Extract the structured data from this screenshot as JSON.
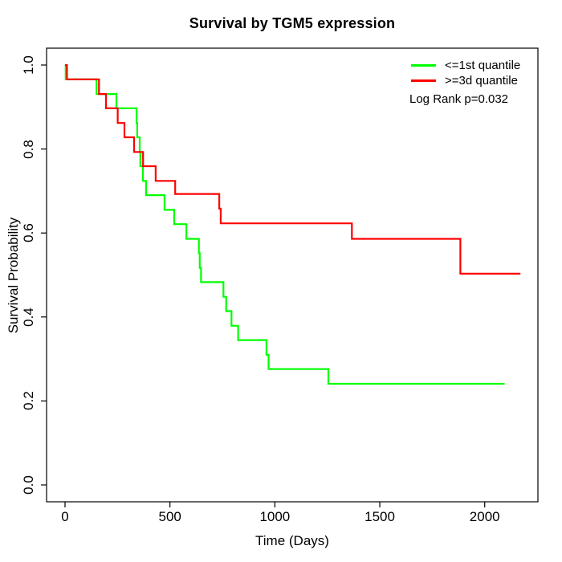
{
  "chart_data": {
    "type": "line",
    "subtype": "kaplan-meier-step-curves",
    "title": "Survival by TGM5 expression",
    "xlabel": "Time (Days)",
    "ylabel": "Survival Probability",
    "xlim": [
      0,
      2260
    ],
    "ylim": [
      0.0,
      1.0
    ],
    "grid": false,
    "frame": "full-box",
    "x_ticks": [
      {
        "value": 0,
        "label": "0"
      },
      {
        "value": 500,
        "label": "500"
      },
      {
        "value": 1000,
        "label": "1000"
      },
      {
        "value": 1500,
        "label": "1500"
      },
      {
        "value": 2000,
        "label": "2000"
      }
    ],
    "y_ticks": [
      {
        "value": 0.0,
        "label": "0.0"
      },
      {
        "value": 0.2,
        "label": "0.2"
      },
      {
        "value": 0.4,
        "label": "0.4"
      },
      {
        "value": 0.6,
        "label": "0.6"
      },
      {
        "value": 0.8,
        "label": "0.8"
      },
      {
        "value": 1.0,
        "label": "1.0"
      }
    ],
    "legend_position": "top-right-inside",
    "annotation": "Log Rank p=0.032",
    "series": [
      {
        "name": "<=1st quantile",
        "color": "#00ff00",
        "end_time": 2095,
        "points": [
          [
            0,
            1.0
          ],
          [
            3,
            0.966
          ],
          [
            150,
            0.931
          ],
          [
            245,
            0.897
          ],
          [
            341,
            0.862
          ],
          [
            344,
            0.828
          ],
          [
            356,
            0.793
          ],
          [
            359,
            0.759
          ],
          [
            371,
            0.724
          ],
          [
            386,
            0.69
          ],
          [
            474,
            0.655
          ],
          [
            520,
            0.621
          ],
          [
            578,
            0.586
          ],
          [
            638,
            0.552
          ],
          [
            642,
            0.517
          ],
          [
            648,
            0.483
          ],
          [
            755,
            0.448
          ],
          [
            768,
            0.414
          ],
          [
            793,
            0.379
          ],
          [
            825,
            0.345
          ],
          [
            960,
            0.31
          ],
          [
            970,
            0.276
          ],
          [
            1255,
            0.241
          ]
        ]
      },
      {
        "name": ">=3d quantile",
        "color": "#ff0000",
        "end_time": 2170,
        "points": [
          [
            0,
            1.0
          ],
          [
            9,
            0.966
          ],
          [
            162,
            0.931
          ],
          [
            195,
            0.897
          ],
          [
            251,
            0.862
          ],
          [
            283,
            0.828
          ],
          [
            329,
            0.793
          ],
          [
            372,
            0.759
          ],
          [
            432,
            0.724
          ],
          [
            525,
            0.693
          ],
          [
            735,
            0.658
          ],
          [
            742,
            0.623
          ],
          [
            1367,
            0.586
          ],
          [
            1884,
            0.503
          ]
        ]
      }
    ]
  }
}
